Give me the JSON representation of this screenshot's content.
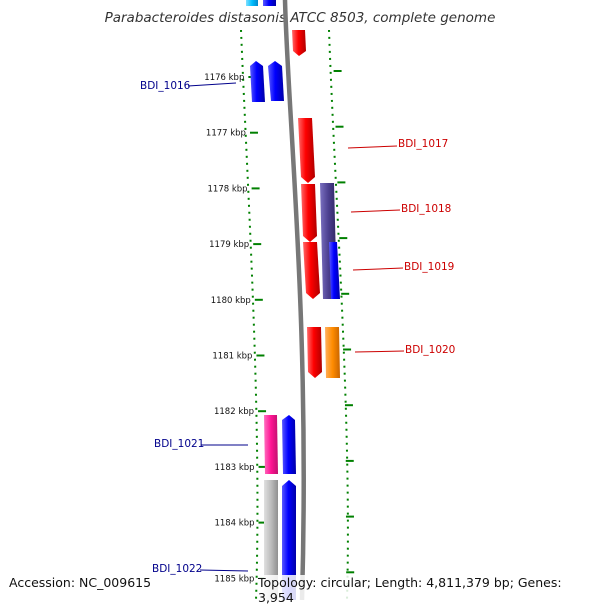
{
  "title": "Parabacteroides distasonis ATCC 8503, complete genome",
  "accession": "Accession: NC_009615",
  "topology": "Topology: circular; Length: 4,811,379 bp; Genes: 3,954",
  "kbp_ticks": [
    {
      "kbp": 1176,
      "label": "1176 kbp"
    },
    {
      "kbp": 1177,
      "label": "1177 kbp"
    },
    {
      "kbp": 1178,
      "label": "1178 kbp"
    },
    {
      "kbp": 1179,
      "label": "1179 kbp"
    },
    {
      "kbp": 1180,
      "label": "1180 kbp"
    },
    {
      "kbp": 1181,
      "label": "1181 kbp"
    },
    {
      "kbp": 1182,
      "label": "1182 kbp"
    },
    {
      "kbp": 1183,
      "label": "1183 kbp"
    },
    {
      "kbp": 1184,
      "label": "1184 kbp"
    },
    {
      "kbp": 1185,
      "label": "1185 kbp"
    }
  ],
  "gene_labels": [
    {
      "name": "BDI_1016",
      "strand": "reverse",
      "color": "#00008b"
    },
    {
      "name": "BDI_1017",
      "strand": "forward",
      "color": "#cc0000"
    },
    {
      "name": "BDI_1018",
      "strand": "forward",
      "color": "#cc0000"
    },
    {
      "name": "BDI_1019",
      "strand": "forward",
      "color": "#cc0000"
    },
    {
      "name": "BDI_1020",
      "strand": "forward",
      "color": "#cc0000"
    },
    {
      "name": "BDI_1021",
      "strand": "reverse",
      "color": "#00008b"
    },
    {
      "name": "BDI_1022",
      "strand": "reverse",
      "color": "#00008b"
    }
  ],
  "colors": {
    "forward_gene": "#ff0000",
    "reverse_gene": "#0000ff",
    "cog_purple": "#4b3f8f",
    "cog_orange": "#ff8c00",
    "cog_pink": "#ff1493",
    "cog_gray": "#bdbdbd",
    "cog_cyan": "#00bfff",
    "tick_green": "#008000",
    "backbone": "#808080"
  }
}
